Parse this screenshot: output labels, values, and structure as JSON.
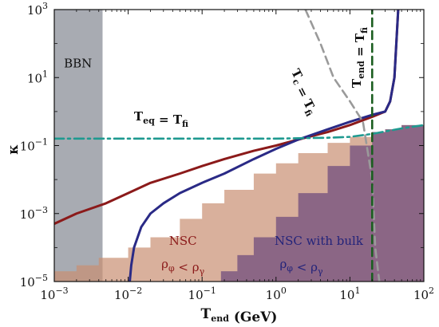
{
  "chart_data": {
    "type": "line",
    "xlabel": "T_end (GeV)",
    "ylabel": "κ",
    "xscale": "log",
    "yscale": "log",
    "xlim": [
      0.001,
      100
    ],
    "ylim": [
      1e-05,
      1000
    ],
    "x_ticks": [
      {
        "value": 0.001,
        "label": "10^-3"
      },
      {
        "value": 0.01,
        "label": "10^-2"
      },
      {
        "value": 0.1,
        "label": "10^-1"
      },
      {
        "value": 1,
        "label": "10^0"
      },
      {
        "value": 10,
        "label": "10^1"
      },
      {
        "value": 100,
        "label": "10^2"
      }
    ],
    "y_ticks": [
      {
        "value": 1e-05,
        "label": "10^-5"
      },
      {
        "value": 0.001,
        "label": "10^-3"
      },
      {
        "value": 0.1,
        "label": "10^-1"
      },
      {
        "value": 10,
        "label": "10^1"
      },
      {
        "value": 1000,
        "label": "10^3"
      }
    ],
    "regions": [
      {
        "name": "BBN",
        "label": "BBN",
        "x_range": [
          0.001,
          0.0045
        ],
        "color": "#a8abb2"
      },
      {
        "name": "NSC",
        "label": "NSC",
        "condition": "ρ_φ < ρ_γ",
        "color": "#c98e72",
        "boundary": [
          [
            0.001,
            2e-05
          ],
          [
            0.002,
            3e-05
          ],
          [
            0.004,
            5e-05
          ],
          [
            0.01,
            0.0001
          ],
          [
            0.02,
            0.0002
          ],
          [
            0.05,
            0.0007
          ],
          [
            0.1,
            0.002
          ],
          [
            0.2,
            0.005
          ],
          [
            0.5,
            0.015
          ],
          [
            1,
            0.03
          ],
          [
            2,
            0.06
          ],
          [
            5,
            0.12
          ],
          [
            10,
            0.18
          ],
          [
            20,
            0.25
          ],
          [
            30,
            0.3
          ],
          [
            50,
            0.4
          ],
          [
            100,
            0.45
          ]
        ]
      },
      {
        "name": "NSC with bulk",
        "label": "NSC with bulk",
        "condition": "ρ_φ < ρ_γ",
        "color": "#7a5580",
        "x_start": 0.18,
        "boundary": [
          [
            0.18,
            2e-05
          ],
          [
            0.3,
            6e-05
          ],
          [
            0.5,
            0.0002
          ],
          [
            1,
            0.0008
          ],
          [
            2,
            0.004
          ],
          [
            5,
            0.025
          ],
          [
            10,
            0.1
          ],
          [
            20,
            0.25
          ],
          [
            30,
            0.3
          ],
          [
            50,
            0.4
          ],
          [
            100,
            0.45
          ]
        ]
      }
    ],
    "series": [
      {
        "role": "NSC boundary",
        "color": "#8b1a1a",
        "style": "solid",
        "x": [
          0.001,
          0.002,
          0.005,
          0.01,
          0.02,
          0.05,
          0.1,
          0.2,
          0.5,
          1,
          2,
          5,
          10,
          20,
          30,
          35,
          40,
          45
        ],
        "y": [
          0.0005,
          0.001,
          0.002,
          0.004,
          0.008,
          0.015,
          0.025,
          0.04,
          0.07,
          0.1,
          0.15,
          0.25,
          0.4,
          0.7,
          1.0,
          2.0,
          10,
          1000
        ]
      },
      {
        "role": "NSC with bulk boundary",
        "color": "#2a2a86",
        "style": "solid",
        "x": [
          0.0105,
          0.011,
          0.012,
          0.015,
          0.02,
          0.03,
          0.05,
          0.1,
          0.2,
          0.5,
          1,
          2,
          5,
          10,
          20,
          30,
          35,
          40,
          45
        ],
        "y": [
          1e-05,
          3e-05,
          0.0001,
          0.0004,
          0.001,
          0.002,
          0.004,
          0.008,
          0.015,
          0.04,
          0.08,
          0.15,
          0.3,
          0.5,
          0.8,
          1.0,
          2.0,
          10,
          1000
        ]
      },
      {
        "role": "T_eq = T_fi",
        "label": "T_eq = T_fi",
        "color": "#1f9a90",
        "style": "dashdot",
        "x": [
          0.001,
          0.01,
          0.1,
          1,
          5,
          10,
          20,
          30,
          50,
          100
        ],
        "y": [
          0.16,
          0.16,
          0.16,
          0.16,
          0.17,
          0.18,
          0.22,
          0.26,
          0.32,
          0.4
        ]
      },
      {
        "role": "T_c = T_fi",
        "label": "T_c = T_fi",
        "color": "#9a9a9a",
        "style": "dashed",
        "x": [
          2.5,
          4,
          6,
          10,
          15,
          20,
          22,
          25
        ],
        "y": [
          1000,
          100,
          10,
          2,
          0.5,
          0.01,
          0.0001,
          1e-05
        ]
      },
      {
        "role": "T_end = T_fi",
        "label": "T_end = T_fi",
        "color": "#1b5e20",
        "style": "dashed",
        "x": [
          20,
          20
        ],
        "y": [
          1e-05,
          1000
        ]
      }
    ],
    "labels": {
      "bbn": "BBN",
      "nsc": "NSC",
      "nsc_condition": "ρ_φ < ρ_γ",
      "nsc_bulk": "NSC with bulk",
      "nsc_bulk_condition": "ρ_φ < ρ_γ",
      "teq": "T_eq = T_fi",
      "tc": "T_c = T_fi",
      "tend": "T_end = T_fi"
    }
  }
}
